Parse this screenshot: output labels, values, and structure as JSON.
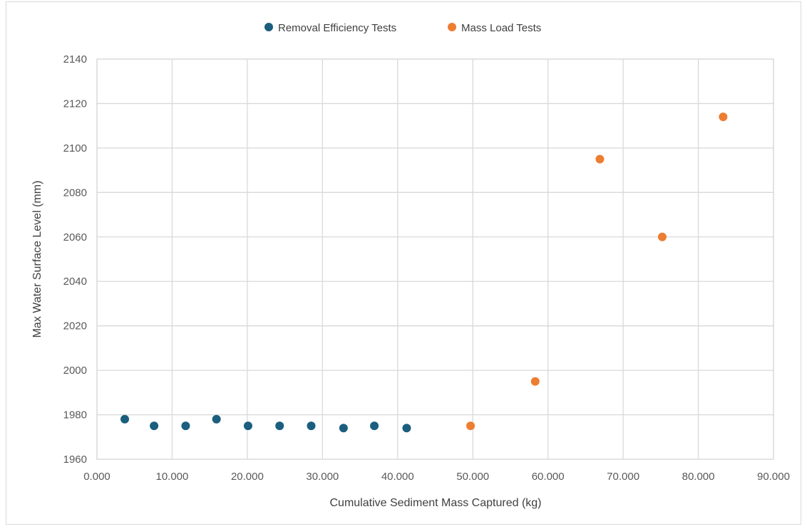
{
  "chart_data": {
    "type": "scatter",
    "title": "",
    "xlabel": "Cumulative Sediment Mass Captured (kg)",
    "ylabel": "Max Water Surface Level (mm)",
    "xlim": [
      0,
      90
    ],
    "ylim": [
      1960,
      2140
    ],
    "x_ticks": [
      "0.000",
      "10.000",
      "20.000",
      "30.000",
      "40.000",
      "50.000",
      "60.000",
      "70.000",
      "80.000",
      "90.000"
    ],
    "y_ticks": [
      "1960",
      "1980",
      "2000",
      "2020",
      "2040",
      "2060",
      "2080",
      "2100",
      "2120",
      "2140"
    ],
    "grid": true,
    "legend_position": "top-center",
    "series": [
      {
        "name": "Removal Efficiency Tests",
        "color": "#1b5e7e",
        "points": [
          {
            "x": 3.7,
            "y": 1978
          },
          {
            "x": 7.6,
            "y": 1975
          },
          {
            "x": 11.8,
            "y": 1975
          },
          {
            "x": 15.9,
            "y": 1978
          },
          {
            "x": 20.1,
            "y": 1975
          },
          {
            "x": 24.3,
            "y": 1975
          },
          {
            "x": 28.5,
            "y": 1975
          },
          {
            "x": 32.8,
            "y": 1974
          },
          {
            "x": 36.9,
            "y": 1975
          },
          {
            "x": 41.2,
            "y": 1974
          }
        ]
      },
      {
        "name": "Mass Load Tests",
        "color": "#ed7d31",
        "points": [
          {
            "x": 49.7,
            "y": 1975
          },
          {
            "x": 58.3,
            "y": 1995
          },
          {
            "x": 66.9,
            "y": 2095
          },
          {
            "x": 75.2,
            "y": 2060
          },
          {
            "x": 83.3,
            "y": 2114
          }
        ]
      }
    ]
  }
}
